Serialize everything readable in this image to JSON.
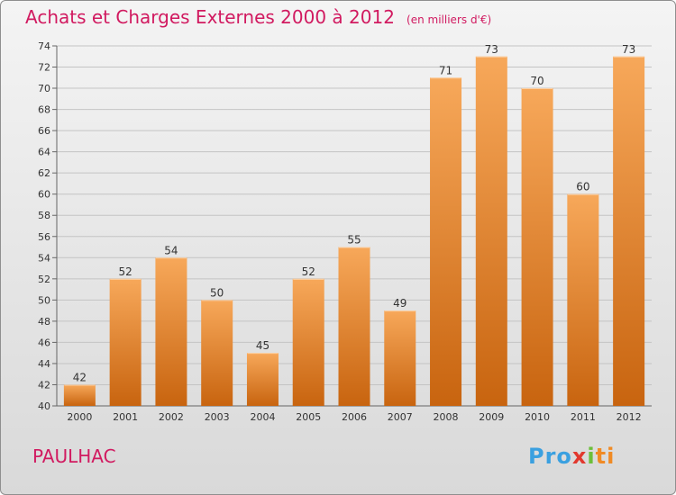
{
  "title": "Achats et Charges Externes 2000 à 2012",
  "subtitle": "(en milliers d'€)",
  "place": "PAULHAC",
  "logo": {
    "p1": "Pro",
    "p2": "x",
    "p3": "i",
    "p4": "ti"
  },
  "colors": {
    "bar_top": "#f7a85a",
    "bar_bottom": "#c8640f",
    "accent": "#d11a60"
  },
  "chart_data": {
    "type": "bar",
    "categories": [
      "2000",
      "2001",
      "2002",
      "2003",
      "2004",
      "2005",
      "2006",
      "2007",
      "2008",
      "2009",
      "2010",
      "2011",
      "2012"
    ],
    "values": [
      42,
      52,
      54,
      50,
      45,
      52,
      55,
      49,
      71,
      73,
      70,
      60,
      73
    ],
    "ylim": [
      40,
      74
    ],
    "yticks": [
      40,
      42,
      44,
      46,
      48,
      50,
      52,
      54,
      56,
      58,
      60,
      62,
      64,
      66,
      68,
      70,
      72,
      74
    ],
    "grid": true
  }
}
